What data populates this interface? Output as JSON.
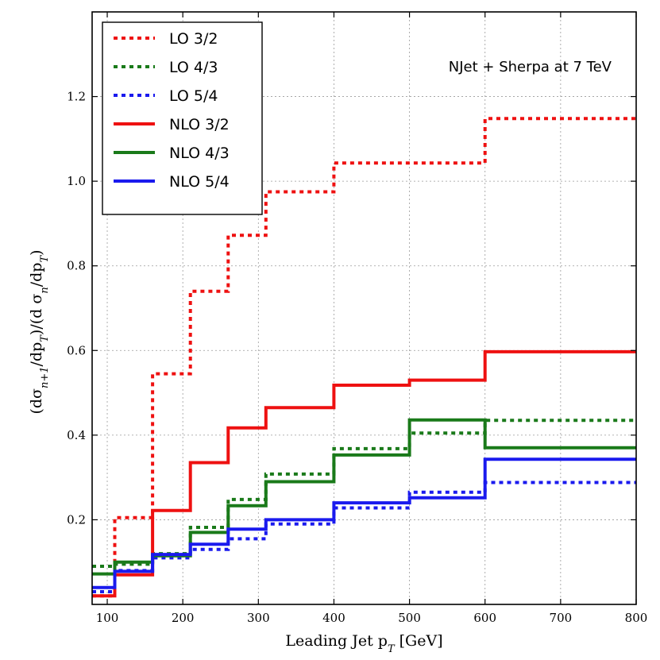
{
  "chart_data": {
    "type": "line",
    "step": true,
    "title": "",
    "annotation": "NJet + Sherpa at 7 TeV",
    "xlabel": "Leading Jet p_T [GeV]",
    "ylabel": "(dσ_{n+1}/dp_T)/(d σ_n/dp_T)",
    "xlim": [
      80,
      800
    ],
    "ylim": [
      0.0,
      1.4
    ],
    "xticks": [
      100,
      200,
      300,
      400,
      500,
      600,
      700,
      800
    ],
    "yticks": [
      0.2,
      0.4,
      0.6,
      0.8,
      1.0,
      1.2
    ],
    "grid": true,
    "legend_position": "top-left",
    "bin_edges": [
      80,
      110,
      160,
      210,
      260,
      310,
      400,
      500,
      600,
      800
    ],
    "series": [
      {
        "name": "LO 3/2",
        "style": "dotted",
        "color": "#ee1111",
        "values": [
          0.02,
          0.205,
          0.545,
          0.74,
          0.872,
          0.975,
          1.043,
          1.043,
          1.148
        ]
      },
      {
        "name": "LO 4/3",
        "style": "dotted",
        "color": "#1a7a1a",
        "values": [
          0.09,
          0.095,
          0.12,
          0.182,
          0.248,
          0.308,
          0.368,
          0.405,
          0.435
        ]
      },
      {
        "name": "LO 5/4",
        "style": "dotted",
        "color": "#1a1aee",
        "values": [
          0.03,
          0.08,
          0.11,
          0.13,
          0.155,
          0.19,
          0.228,
          0.265,
          0.288
        ]
      },
      {
        "name": "NLO 3/2",
        "style": "solid",
        "color": "#ee1111",
        "values": [
          0.02,
          0.07,
          0.222,
          0.335,
          0.417,
          0.465,
          0.518,
          0.53,
          0.597
        ]
      },
      {
        "name": "NLO 4/3",
        "style": "solid",
        "color": "#1a7a1a",
        "values": [
          0.072,
          0.1,
          0.115,
          0.17,
          0.233,
          0.29,
          0.353,
          0.436,
          0.37
        ]
      },
      {
        "name": "NLO 5/4",
        "style": "solid",
        "color": "#1a1aee",
        "values": [
          0.04,
          0.078,
          0.118,
          0.142,
          0.178,
          0.2,
          0.24,
          0.252,
          0.343
        ]
      }
    ]
  }
}
